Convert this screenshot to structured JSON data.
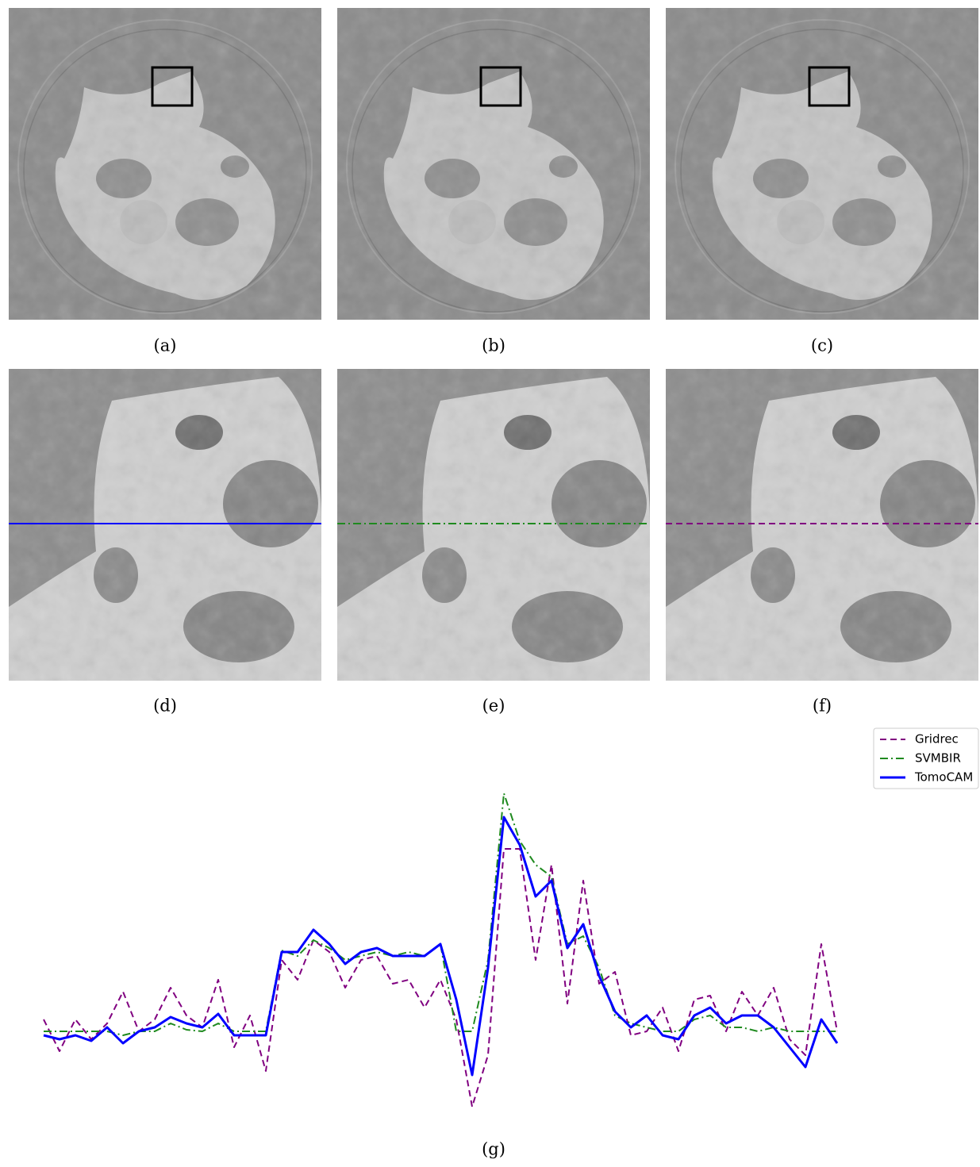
{
  "panel_labels": [
    "(a)",
    "(b)",
    "(c)",
    "(d)",
    "(e)",
    "(f)",
    "(g)"
  ],
  "chart_data": {
    "type": "line",
    "xlim": [
      0,
      100
    ],
    "ylim": [
      0,
      420
    ],
    "x": [
      0,
      2,
      4,
      6,
      8,
      10,
      12,
      14,
      16,
      18,
      20,
      22,
      24,
      26,
      28,
      30,
      32,
      34,
      36,
      38,
      40,
      42,
      44,
      46,
      48,
      50,
      52,
      54,
      56,
      58,
      60,
      62,
      64,
      66,
      68,
      70,
      72,
      74,
      76,
      78,
      80,
      82,
      84,
      86,
      88,
      90,
      92,
      94,
      96,
      98,
      100
    ],
    "legend": "upper right",
    "series": [
      {
        "name": "Gridrec",
        "color": "#800080",
        "linestyle": "dashed",
        "values": [
          125,
          85,
          125,
          100,
          120,
          160,
          110,
          125,
          165,
          130,
          115,
          175,
          90,
          130,
          60,
          200,
          175,
          225,
          210,
          165,
          200,
          205,
          170,
          175,
          140,
          175,
          125,
          15,
          80,
          340,
          340,
          200,
          320,
          145,
          300,
          170,
          185,
          105,
          110,
          140,
          85,
          150,
          155,
          110,
          160,
          130,
          165,
          100,
          80,
          220,
          110
        ]
      },
      {
        "name": "SVMBIR",
        "color": "#1f8a1f",
        "linestyle": "dashdot",
        "values": [
          110,
          110,
          110,
          110,
          110,
          105,
          110,
          110,
          120,
          112,
          110,
          120,
          110,
          110,
          110,
          212,
          205,
          225,
          215,
          200,
          205,
          210,
          205,
          210,
          205,
          220,
          110,
          110,
          200,
          410,
          350,
          320,
          305,
          220,
          230,
          190,
          130,
          120,
          115,
          110,
          110,
          125,
          130,
          115,
          115,
          110,
          115,
          110,
          110,
          110,
          110
        ]
      },
      {
        "name": "TomoCAM",
        "color": "#0000ff",
        "linestyle": "solid",
        "values": [
          105,
          100,
          105,
          98,
          115,
          95,
          110,
          115,
          128,
          120,
          115,
          132,
          105,
          105,
          105,
          210,
          210,
          238,
          220,
          195,
          210,
          215,
          205,
          205,
          205,
          220,
          150,
          55,
          190,
          380,
          345,
          280,
          300,
          215,
          245,
          180,
          135,
          115,
          130,
          105,
          100,
          130,
          140,
          120,
          130,
          130,
          115,
          90,
          65,
          125,
          95
        ]
      }
    ]
  }
}
